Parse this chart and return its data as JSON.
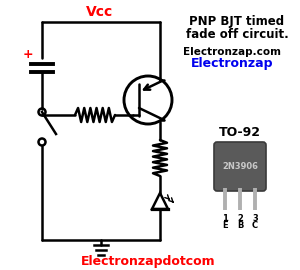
{
  "bg_color": "#ffffff",
  "title_line1": "PNP BJT timed",
  "title_line2": "fade off circuit.",
  "title_color": "#000000",
  "title_fontsize": 8.5,
  "website1": "Electronzap.com",
  "website1_color": "#000000",
  "website2": "Electronzap",
  "website2_color": "#0000ee",
  "website3": "Electronzapdotcom",
  "website3_color": "#ff0000",
  "website_fontsize": 7.5,
  "vcc_label": "Vcc",
  "vcc_color": "#ff0000",
  "transistor_label": "2N3906",
  "transistor_package": "TO-92",
  "sc": "#000000",
  "lw": 1.8
}
